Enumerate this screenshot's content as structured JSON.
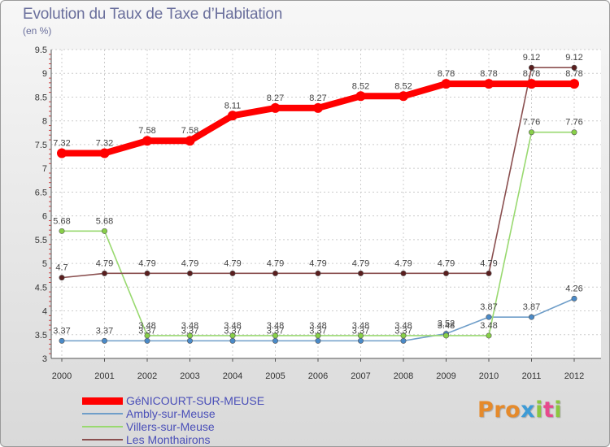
{
  "chart_data": {
    "type": "line",
    "title": "Evolution du Taux de Taxe d’Habitation",
    "ylabel": "(en %)",
    "xlabel": "",
    "x": [
      "2000",
      "2001",
      "2002",
      "2003",
      "2004",
      "2005",
      "2006",
      "2007",
      "2008",
      "2009",
      "2010",
      "2011",
      "2012"
    ],
    "ylim": [
      3,
      9.5
    ],
    "yticks": [
      "3",
      "3.5",
      "4",
      "4.5",
      "5",
      "5.5",
      "6",
      "6.5",
      "7",
      "7.5",
      "8",
      "8.5",
      "9",
      "9.5"
    ],
    "grid": true,
    "series": [
      {
        "name": "GéNICOURT-SUR-MEUSE",
        "color": "#ff0000",
        "marker": "#ff0000",
        "values": [
          7.32,
          7.32,
          7.58,
          7.58,
          8.11,
          8.27,
          8.27,
          8.52,
          8.52,
          8.78,
          8.78,
          8.78,
          8.78
        ],
        "labels": [
          "7.32",
          "7.32",
          "7.58",
          "7.58",
          "8.11",
          "8.27",
          "8.27",
          "8.52",
          "8.52",
          "8.78",
          "8.78",
          "8.78",
          "8.78"
        ]
      },
      {
        "name": "Ambly-sur-Meuse",
        "color": "#6f9ec9",
        "marker": "#4a8ac8",
        "values": [
          3.37,
          3.37,
          3.37,
          3.37,
          3.37,
          3.37,
          3.37,
          3.37,
          3.37,
          3.52,
          3.87,
          3.87,
          4.26
        ],
        "labels": [
          "3.37",
          "3.37",
          "3.37",
          "3.37",
          "3.37",
          "3.37",
          "3.37",
          "3.37",
          "3.37",
          "3.52",
          "3.87",
          "3.87",
          "4.26"
        ]
      },
      {
        "name": "Villers-sur-Meuse",
        "color": "#99d970",
        "marker": "#88d048",
        "values": [
          5.68,
          5.68,
          3.48,
          3.48,
          3.48,
          3.48,
          3.48,
          3.48,
          3.48,
          3.48,
          3.48,
          7.76,
          7.76
        ],
        "labels": [
          "5.68",
          "5.68",
          "3.48",
          "3.48",
          "3.48",
          "3.48",
          "3.48",
          "3.48",
          "3.48",
          "3.48",
          "3.48",
          "7.76",
          "7.76"
        ]
      },
      {
        "name": "Les Monthairons",
        "color": "#8a4f4f",
        "marker": "#5a1e1e",
        "values": [
          4.7,
          4.79,
          4.79,
          4.79,
          4.79,
          4.79,
          4.79,
          4.79,
          4.79,
          4.79,
          4.79,
          9.12,
          9.12
        ],
        "labels": [
          "4.7",
          "4.79",
          "4.79",
          "4.79",
          "4.79",
          "4.79",
          "4.79",
          "4.79",
          "4.79",
          "4.79",
          "4.79",
          "9.12",
          "9.12"
        ]
      }
    ]
  },
  "logo": {
    "p1": "Pro",
    "p2": "x",
    "p3": "i",
    "p4": "t",
    "p5": "i"
  }
}
